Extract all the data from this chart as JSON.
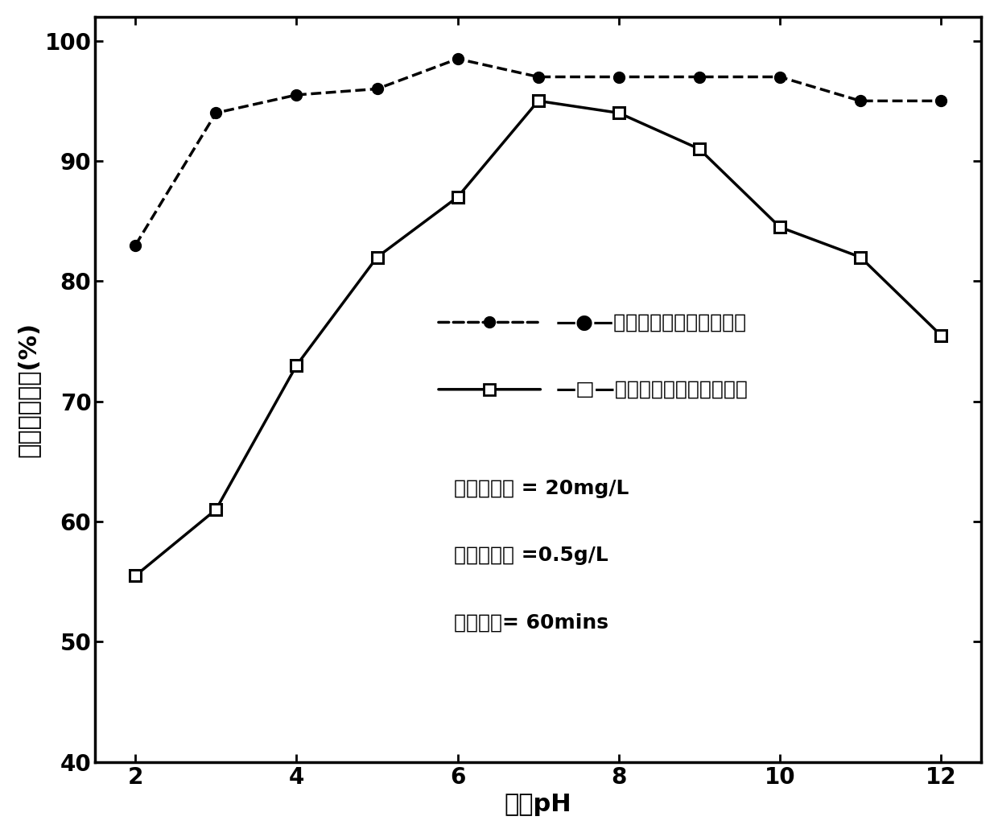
{
  "series1_label": "—●—树脂基水合氧化锄吸附剂",
  "series1_x": [
    2,
    3,
    4,
    5,
    6,
    7,
    8,
    9,
    10,
    11,
    12
  ],
  "series1_y": [
    83.0,
    94.0,
    95.5,
    96.0,
    98.5,
    97.0,
    97.0,
    97.0,
    97.0,
    95.0,
    95.0
  ],
  "series2_label": "—□—树脂基水合氧化铁吸附剂",
  "series2_x": [
    2,
    3,
    4,
    5,
    6,
    7,
    8,
    9,
    10,
    11,
    12
  ],
  "series2_y": [
    55.5,
    61.0,
    73.0,
    82.0,
    87.0,
    95.0,
    94.0,
    91.0,
    84.5,
    82.0,
    75.5
  ],
  "xlabel": "平衡pH",
  "ylabel": "五价砸去除率(%)",
  "xlim": [
    1.5,
    12.5
  ],
  "ylim": [
    40,
    102
  ],
  "xticks": [
    2,
    4,
    6,
    8,
    10,
    12
  ],
  "yticks": [
    40,
    50,
    60,
    70,
    80,
    90,
    100
  ],
  "annotation_line1": "初始砸浓度 = 20mg/L",
  "annotation_line2": "吸附剂用量 =0.5g/L",
  "annotation_line3": "平衡时间= 60mins",
  "line_color": "#000000",
  "bg_color": "#ffffff",
  "marker_size": 10,
  "linewidth": 2.5,
  "font_size_label": 22,
  "font_size_tick": 20,
  "font_size_legend": 18,
  "font_size_annot": 18
}
